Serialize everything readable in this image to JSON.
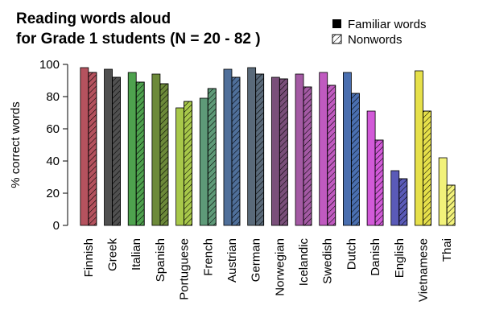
{
  "chart_data": {
    "type": "bar",
    "title": [
      "Reading words aloud",
      "for Grade 1 students (N = 20 - 82 )"
    ],
    "ylabel": "% correct words",
    "xlabel": "",
    "ylim": [
      0,
      100
    ],
    "yticks": [
      0,
      20,
      40,
      60,
      80,
      100
    ],
    "legend_position": "top-right",
    "categories": [
      "Finnish",
      "Greek",
      "Italian",
      "Spanish",
      "Portuguese",
      "French",
      "Austrian",
      "German",
      "Norwegian",
      "Icelandic",
      "Swedish",
      "Dutch",
      "Danish",
      "English",
      "Vietnamese",
      "Thai"
    ],
    "colors": [
      "#b5525e",
      "#505050",
      "#4ea24e",
      "#6d8a3a",
      "#a8c84a",
      "#5e9a78",
      "#4f6f9a",
      "#5a6a7a",
      "#7a4f7a",
      "#a45aa4",
      "#c05ac0",
      "#4a6fb0",
      "#d25ad8",
      "#5a5ab8",
      "#e6e04a",
      "#f2f27a"
    ],
    "series": [
      {
        "name": "Familiar words",
        "pattern": "solid",
        "values": [
          98,
          97,
          95,
          94,
          73,
          79,
          97,
          98,
          92,
          94,
          95,
          95,
          71,
          34,
          96,
          42
        ]
      },
      {
        "name": "Nonwords",
        "pattern": "hatched",
        "values": [
          95,
          92,
          89,
          88,
          77,
          85,
          92,
          94,
          91,
          86,
          87,
          82,
          53,
          29,
          71,
          25
        ]
      }
    ]
  }
}
